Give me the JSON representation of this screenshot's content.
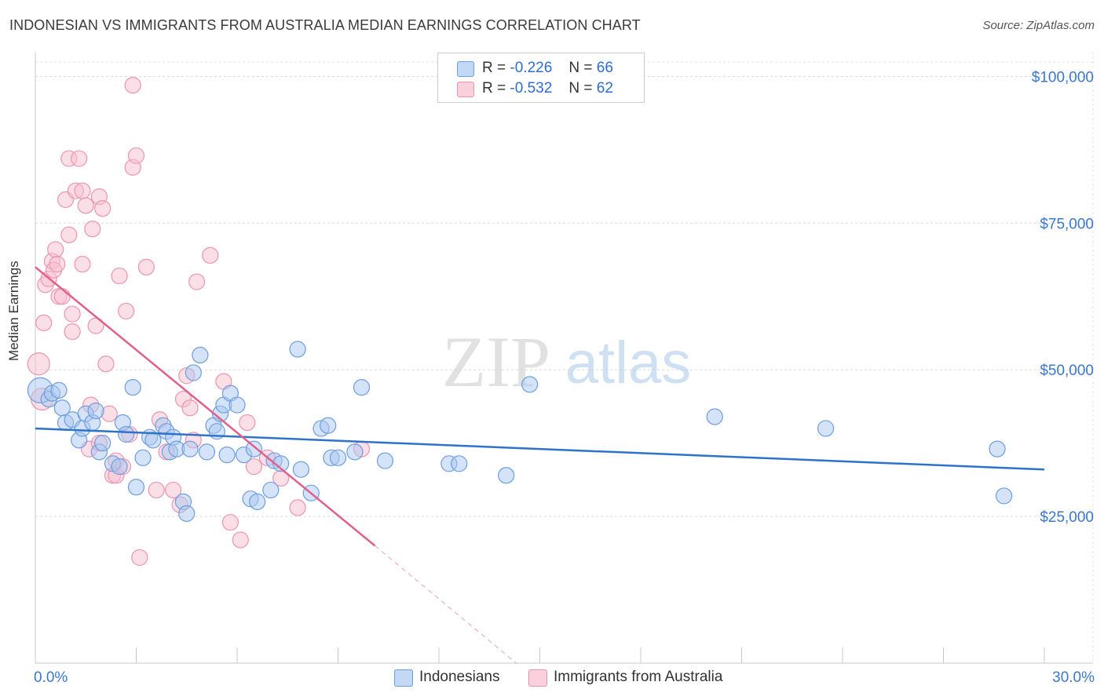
{
  "title": "INDONESIAN VS IMMIGRANTS FROM AUSTRALIA MEDIAN EARNINGS CORRELATION CHART",
  "source": "Source: ZipAtlas.com",
  "watermark": {
    "zip": "ZIP",
    "atlas": "atlas"
  },
  "legend": {
    "r_label": "R =",
    "n_label": "N =",
    "series": [
      {
        "r": "-0.226",
        "n": "66"
      },
      {
        "r": "-0.532",
        "n": "62"
      }
    ]
  },
  "colors": {
    "blue_fill": "#a9c8f0",
    "blue_stroke": "#6b9de0",
    "blue_line": "#2f72c9",
    "pink_fill": "#f7bfd0",
    "pink_stroke": "#ee93ae",
    "pink_line": "#e0608e",
    "axis_text": "#3a78cc"
  },
  "chart_data": {
    "type": "scatter",
    "title": "INDONESIAN VS IMMIGRANTS FROM AUSTRALIA MEDIAN EARNINGS CORRELATION CHART",
    "xlabel": "",
    "ylabel": "Median Earnings",
    "xlim": [
      0,
      30
    ],
    "ylim": [
      0,
      105000
    ],
    "x_tick_labels": [
      "0.0%",
      "30.0%"
    ],
    "y_ticks": [
      {
        "value": 25000,
        "label": "$25,000"
      },
      {
        "value": 50000,
        "label": "$50,000"
      },
      {
        "value": 75000,
        "label": "$75,000"
      },
      {
        "value": 100000,
        "label": "$100,000"
      }
    ],
    "grid": true,
    "legend_position": "top-center",
    "series": [
      {
        "name": "Indonesians",
        "r": -0.226,
        "n": 66,
        "trend": {
          "x": [
            0,
            30
          ],
          "y": [
            40000,
            33000
          ],
          "dashed_after": null
        },
        "points": [
          [
            0.15,
            46500,
            16
          ],
          [
            0.4,
            45000,
            10
          ],
          [
            0.5,
            46000,
            10
          ],
          [
            0.7,
            46500,
            10
          ],
          [
            0.8,
            43500,
            10
          ],
          [
            0.9,
            41000,
            10
          ],
          [
            1.1,
            41500,
            10
          ],
          [
            1.3,
            38000,
            10
          ],
          [
            1.4,
            40000,
            10
          ],
          [
            1.5,
            42500,
            10
          ],
          [
            1.7,
            41000,
            10
          ],
          [
            1.8,
            43000,
            10
          ],
          [
            1.9,
            36000,
            10
          ],
          [
            2.0,
            37500,
            10
          ],
          [
            2.3,
            34000,
            10
          ],
          [
            2.5,
            33500,
            10
          ],
          [
            2.6,
            41000,
            10
          ],
          [
            2.7,
            39000,
            10
          ],
          [
            2.9,
            47000,
            10
          ],
          [
            3.0,
            30000,
            10
          ],
          [
            3.2,
            35000,
            10
          ],
          [
            3.4,
            38500,
            10
          ],
          [
            3.5,
            38000,
            10
          ],
          [
            3.8,
            40500,
            10
          ],
          [
            3.9,
            39500,
            10
          ],
          [
            4.0,
            36000,
            10
          ],
          [
            4.1,
            38500,
            10
          ],
          [
            4.2,
            36500,
            10
          ],
          [
            4.4,
            27500,
            10
          ],
          [
            4.5,
            25500,
            10
          ],
          [
            4.6,
            36500,
            10
          ],
          [
            4.7,
            49500,
            10
          ],
          [
            4.9,
            52500,
            10
          ],
          [
            5.1,
            36000,
            10
          ],
          [
            5.3,
            40500,
            10
          ],
          [
            5.4,
            39500,
            10
          ],
          [
            5.5,
            42500,
            10
          ],
          [
            5.6,
            44000,
            10
          ],
          [
            5.7,
            35500,
            10
          ],
          [
            5.8,
            46000,
            10
          ],
          [
            6.0,
            44000,
            10
          ],
          [
            6.2,
            35500,
            10
          ],
          [
            6.4,
            28000,
            10
          ],
          [
            6.5,
            36500,
            10
          ],
          [
            6.6,
            27500,
            10
          ],
          [
            7.0,
            29500,
            10
          ],
          [
            7.1,
            34500,
            10
          ],
          [
            7.3,
            34000,
            10
          ],
          [
            7.8,
            53500,
            10
          ],
          [
            7.9,
            33000,
            10
          ],
          [
            8.2,
            29000,
            10
          ],
          [
            8.5,
            40000,
            10
          ],
          [
            8.7,
            40500,
            10
          ],
          [
            8.8,
            35000,
            10
          ],
          [
            9.0,
            35000,
            10
          ],
          [
            9.5,
            36000,
            10
          ],
          [
            9.7,
            47000,
            10
          ],
          [
            10.4,
            34500,
            10
          ],
          [
            12.3,
            34000,
            10
          ],
          [
            12.6,
            34000,
            10
          ],
          [
            14.0,
            32000,
            10
          ],
          [
            14.7,
            47500,
            10
          ],
          [
            20.2,
            42000,
            10
          ],
          [
            23.5,
            40000,
            10
          ],
          [
            28.6,
            36500,
            10
          ],
          [
            28.8,
            28500,
            10
          ]
        ]
      },
      {
        "name": "Immigrants from Australia",
        "r": -0.532,
        "n": 62,
        "trend": {
          "x": [
            0,
            10.1
          ],
          "y": [
            67500,
            20000
          ],
          "dashed_to": [
            14.3,
            0
          ]
        },
        "points": [
          [
            0.1,
            51000,
            14
          ],
          [
            0.2,
            45000,
            14
          ],
          [
            0.25,
            58000,
            10
          ],
          [
            0.3,
            64500,
            10
          ],
          [
            0.4,
            65500,
            10
          ],
          [
            0.5,
            68500,
            10
          ],
          [
            0.55,
            67000,
            10
          ],
          [
            0.6,
            70500,
            10
          ],
          [
            0.65,
            68000,
            10
          ],
          [
            0.7,
            62500,
            10
          ],
          [
            0.8,
            62500,
            10
          ],
          [
            0.9,
            79000,
            10
          ],
          [
            1.0,
            73000,
            10
          ],
          [
            1.0,
            86000,
            10
          ],
          [
            1.1,
            56500,
            10
          ],
          [
            1.1,
            59500,
            10
          ],
          [
            1.2,
            80500,
            10
          ],
          [
            1.3,
            86000,
            10
          ],
          [
            1.4,
            80500,
            10
          ],
          [
            1.4,
            68000,
            10
          ],
          [
            1.5,
            78000,
            10
          ],
          [
            1.6,
            36500,
            10
          ],
          [
            1.65,
            44000,
            10
          ],
          [
            1.7,
            74000,
            10
          ],
          [
            1.8,
            57500,
            10
          ],
          [
            1.9,
            79500,
            10
          ],
          [
            1.9,
            37500,
            10
          ],
          [
            2.0,
            77500,
            10
          ],
          [
            2.1,
            51000,
            10
          ],
          [
            2.2,
            42500,
            10
          ],
          [
            2.3,
            32000,
            10
          ],
          [
            2.4,
            32000,
            10
          ],
          [
            2.4,
            34500,
            10
          ],
          [
            2.5,
            66000,
            10
          ],
          [
            2.6,
            33500,
            10
          ],
          [
            2.7,
            60000,
            10
          ],
          [
            2.8,
            39000,
            10
          ],
          [
            2.9,
            84500,
            10
          ],
          [
            2.9,
            98500,
            10
          ],
          [
            3.0,
            86500,
            10
          ],
          [
            3.1,
            18000,
            10
          ],
          [
            3.3,
            67500,
            10
          ],
          [
            3.6,
            29500,
            10
          ],
          [
            3.7,
            41500,
            10
          ],
          [
            3.9,
            36000,
            10
          ],
          [
            4.1,
            29500,
            10
          ],
          [
            4.3,
            27000,
            10
          ],
          [
            4.4,
            45000,
            10
          ],
          [
            4.5,
            49000,
            10
          ],
          [
            4.6,
            43500,
            10
          ],
          [
            4.7,
            38000,
            10
          ],
          [
            4.8,
            65000,
            10
          ],
          [
            5.2,
            69500,
            10
          ],
          [
            5.6,
            48000,
            10
          ],
          [
            5.8,
            24000,
            10
          ],
          [
            6.1,
            21000,
            10
          ],
          [
            6.3,
            41000,
            10
          ],
          [
            6.5,
            33500,
            10
          ],
          [
            6.9,
            35000,
            10
          ],
          [
            7.3,
            31500,
            10
          ],
          [
            7.8,
            26500,
            10
          ],
          [
            9.7,
            36500,
            10
          ]
        ]
      }
    ]
  }
}
